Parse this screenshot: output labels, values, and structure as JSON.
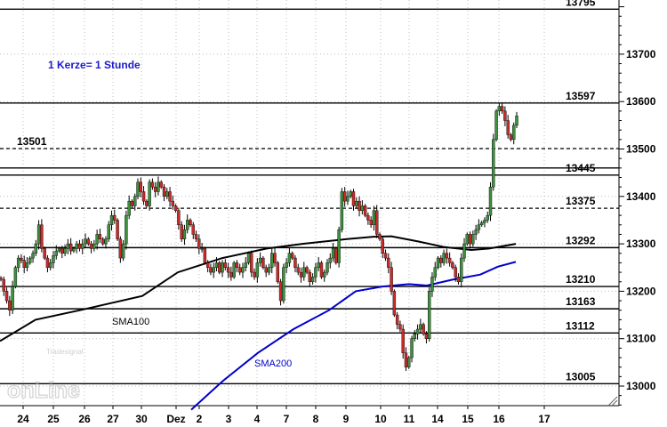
{
  "chart_data": {
    "type": "candlestick",
    "title": "",
    "annotation": "1 Kerze= 1 Stunde",
    "y_axis": {
      "ticks": [
        13000,
        13100,
        13200,
        13300,
        13400,
        13500,
        13600,
        13700
      ],
      "ylim": [
        12960,
        13830
      ]
    },
    "x_axis": {
      "ticks": [
        "24",
        "25",
        "26",
        "27",
        "30",
        "Dez",
        "2",
        "3",
        "4",
        "7",
        "8",
        "9",
        "10",
        "11",
        "14",
        "15",
        "16",
        "17"
      ]
    },
    "levels": [
      {
        "value": 13795,
        "label": "13795",
        "style": "solid"
      },
      {
        "value": 13597,
        "label": "13597",
        "style": "solid"
      },
      {
        "value": 13501,
        "label": "13501",
        "style": "dashed",
        "label_side": "left"
      },
      {
        "value": 13460,
        "label": "",
        "style": "solid"
      },
      {
        "value": 13445,
        "label": "13445",
        "style": "solid"
      },
      {
        "value": 13375,
        "label": "13375",
        "style": "dashed"
      },
      {
        "value": 13292,
        "label": "13292",
        "style": "solid"
      },
      {
        "value": 13210,
        "label": "13210",
        "style": "solid"
      },
      {
        "value": 13163,
        "label": "13163",
        "style": "solid"
      },
      {
        "value": 13112,
        "label": "13112",
        "style": "solid"
      },
      {
        "value": 13005,
        "label": "13005",
        "style": "solid"
      }
    ],
    "indicators": [
      {
        "name": "SMA100",
        "color": "#000000"
      },
      {
        "name": "SMA200",
        "color": "#0000cc"
      }
    ],
    "series": {
      "closes": [
        13225,
        13200,
        13180,
        13160,
        13210,
        13250,
        13270,
        13265,
        13250,
        13260,
        13270,
        13280,
        13300,
        13340,
        13290,
        13270,
        13250,
        13260,
        13275,
        13285,
        13290,
        13280,
        13290,
        13300,
        13285,
        13290,
        13300,
        13290,
        13300,
        13310,
        13300,
        13290,
        13300,
        13320,
        13310,
        13300,
        13310,
        13340,
        13360,
        13350,
        13310,
        13270,
        13300,
        13360,
        13390,
        13380,
        13400,
        13430,
        13410,
        13390,
        13380,
        13430,
        13420,
        13410,
        13430,
        13420,
        13400,
        13410,
        13390,
        13380,
        13370,
        13340,
        13310,
        13330,
        13350,
        13340,
        13320,
        13310,
        13290,
        13290,
        13260,
        13250,
        13240,
        13250,
        13260,
        13240,
        13260,
        13250,
        13240,
        13230,
        13260,
        13250,
        13240,
        13250,
        13260,
        13280,
        13240,
        13230,
        13260,
        13270,
        13250,
        13240,
        13250,
        13280,
        13260,
        13220,
        13180,
        13250,
        13260,
        13280,
        13270,
        13250,
        13240,
        13230,
        13250,
        13240,
        13220,
        13230,
        13250,
        13260,
        13230,
        13240,
        13260,
        13270,
        13290,
        13260,
        13330,
        13410,
        13390,
        13400,
        13410,
        13380,
        13390,
        13370,
        13380,
        13360,
        13350,
        13340,
        13370,
        13320,
        13310,
        13280,
        13270,
        13250,
        13200,
        13150,
        13130,
        13120,
        13070,
        13040,
        13060,
        13100,
        13110,
        13120,
        13130,
        13110,
        13100,
        13200,
        13230,
        13250,
        13270,
        13260,
        13280,
        13270,
        13260,
        13250,
        13230,
        13220,
        13270,
        13300,
        13320,
        13300,
        13320,
        13330,
        13340,
        13345,
        13350,
        13360,
        13420,
        13520,
        13580,
        13590,
        13580,
        13560,
        13530,
        13520,
        13550,
        13570
      ],
      "sma100": [
        [
          0,
          13095
        ],
        [
          40,
          13140
        ],
        [
          90,
          13160
        ],
        [
          160,
          13190
        ],
        [
          200,
          13240
        ],
        [
          250,
          13270
        ],
        [
          300,
          13290
        ],
        [
          340,
          13300
        ],
        [
          390,
          13310
        ],
        [
          420,
          13315
        ],
        [
          440,
          13316
        ],
        [
          470,
          13305
        ],
        [
          500,
          13293
        ],
        [
          530,
          13287
        ],
        [
          550,
          13290
        ],
        [
          580,
          13300
        ]
      ],
      "sma200": [
        [
          215,
          12950
        ],
        [
          250,
          13010
        ],
        [
          290,
          13070
        ],
        [
          330,
          13120
        ],
        [
          370,
          13160
        ],
        [
          400,
          13200
        ],
        [
          430,
          13210
        ],
        [
          460,
          13215
        ],
        [
          480,
          13212
        ],
        [
          510,
          13225
        ],
        [
          540,
          13235
        ],
        [
          560,
          13252
        ],
        [
          580,
          13262
        ]
      ]
    }
  },
  "brand": {
    "small": "Tradesignal",
    "big": "onLine"
  }
}
